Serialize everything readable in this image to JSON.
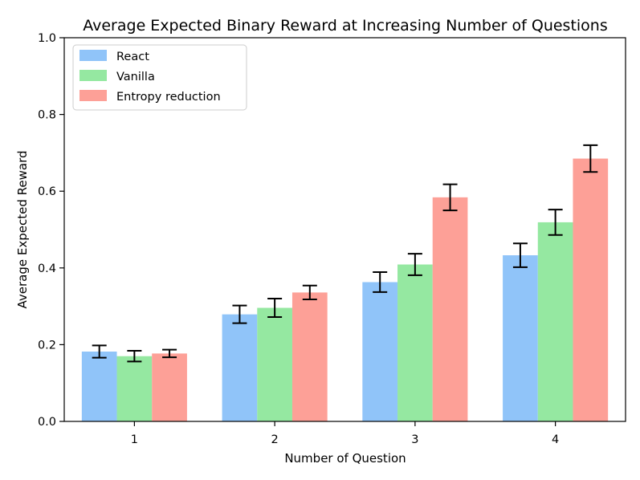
{
  "chart_data": {
    "type": "bar",
    "title": "Average Expected Binary Reward at Increasing Number of Questions",
    "xlabel": "Number of Question",
    "ylabel": "Average Expected Reward",
    "ylim": [
      0,
      1.0
    ],
    "yticks": [
      "0.0",
      "0.2",
      "0.4",
      "0.6",
      "0.8",
      "1.0"
    ],
    "categories": [
      "1",
      "2",
      "3",
      "4"
    ],
    "legend_position": "top-left",
    "grid": false,
    "series": [
      {
        "name": "React",
        "color": "#90c4f9",
        "values": [
          0.182,
          0.279,
          0.363,
          0.433
        ],
        "errors": [
          0.016,
          0.023,
          0.026,
          0.031
        ]
      },
      {
        "name": "Vanilla",
        "color": "#95e8a1",
        "values": [
          0.17,
          0.296,
          0.409,
          0.519
        ],
        "errors": [
          0.014,
          0.024,
          0.028,
          0.033
        ]
      },
      {
        "name": "Entropy reduction",
        "color": "#fda097",
        "values": [
          0.177,
          0.336,
          0.584,
          0.685
        ],
        "errors": [
          0.01,
          0.018,
          0.034,
          0.035
        ]
      }
    ]
  }
}
